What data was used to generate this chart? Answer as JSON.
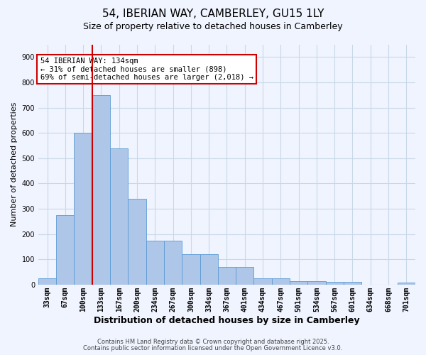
{
  "title": "54, IBERIAN WAY, CAMBERLEY, GU15 1LY",
  "subtitle": "Size of property relative to detached houses in Camberley",
  "xlabel": "Distribution of detached houses by size in Camberley",
  "ylabel": "Number of detached properties",
  "categories": [
    "33sqm",
    "67sqm",
    "100sqm",
    "133sqm",
    "167sqm",
    "200sqm",
    "234sqm",
    "267sqm",
    "300sqm",
    "334sqm",
    "367sqm",
    "401sqm",
    "434sqm",
    "467sqm",
    "501sqm",
    "534sqm",
    "567sqm",
    "601sqm",
    "634sqm",
    "668sqm",
    "701sqm"
  ],
  "values": [
    25,
    275,
    600,
    750,
    540,
    340,
    175,
    175,
    120,
    120,
    70,
    70,
    25,
    25,
    15,
    15,
    10,
    10,
    0,
    0,
    8
  ],
  "bar_color": "#aec6e8",
  "bar_edge_color": "#5b9bd5",
  "background_color": "#f0f4ff",
  "grid_color": "#c8d8e8",
  "red_line_x": 2.5,
  "red_line_color": "#cc0000",
  "annotation_text": "54 IBERIAN WAY: 134sqm\n← 31% of detached houses are smaller (898)\n69% of semi-detached houses are larger (2,018) →",
  "annotation_box_color": "#ffffff",
  "annotation_box_edge_color": "#cc0000",
  "annotation_fontsize": 7.5,
  "ylim": [
    0,
    950
  ],
  "yticks": [
    0,
    100,
    200,
    300,
    400,
    500,
    600,
    700,
    800,
    900
  ],
  "footer1": "Contains HM Land Registry data © Crown copyright and database right 2025.",
  "footer2": "Contains public sector information licensed under the Open Government Licence v3.0.",
  "title_fontsize": 11,
  "subtitle_fontsize": 9,
  "xlabel_fontsize": 9,
  "ylabel_fontsize": 8,
  "tick_fontsize": 7,
  "footer_fontsize": 6
}
